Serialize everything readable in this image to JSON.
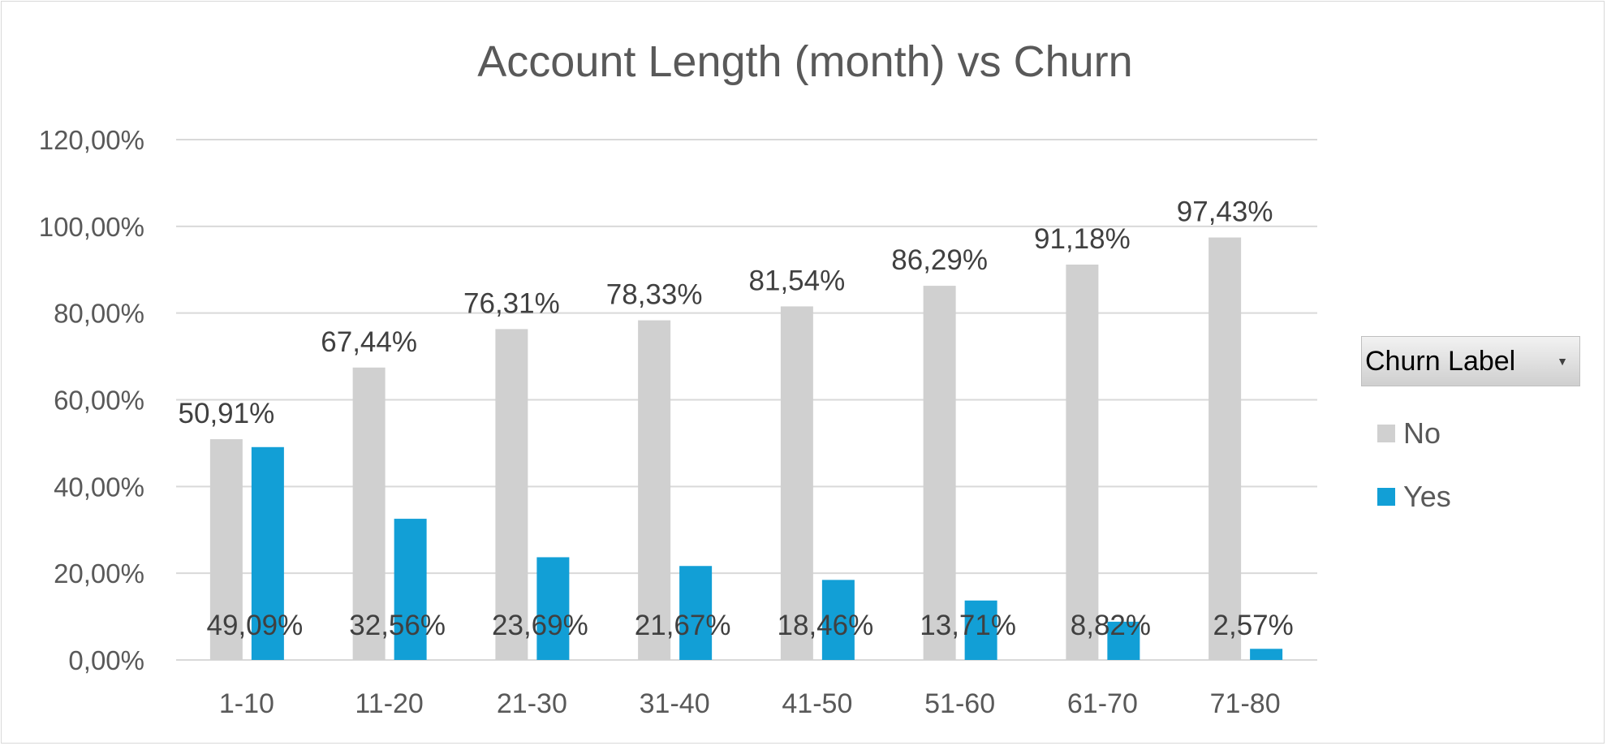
{
  "colors": {
    "no": "#d0d0d0",
    "yes": "#129fd6",
    "grid": "#d9d9d9",
    "text": "#595959",
    "label": "#404040"
  },
  "chart_data": {
    "type": "bar",
    "title": "Account Length (month) vs Churn",
    "xlabel": "",
    "ylabel": "",
    "ylim": [
      0,
      120
    ],
    "y_ticks": [
      "0,00%",
      "20,00%",
      "40,00%",
      "60,00%",
      "80,00%",
      "100,00%",
      "120,00%"
    ],
    "grid": true,
    "legend_placement": "right",
    "categories": [
      "1-10",
      "11-20",
      "21-30",
      "31-40",
      "41-50",
      "51-60",
      "61-70",
      "71-80"
    ],
    "series": [
      {
        "name": "No",
        "color": "#d0d0d0",
        "values": [
          50.91,
          67.44,
          76.31,
          78.33,
          81.54,
          86.29,
          91.18,
          97.43
        ],
        "labels": [
          "50,91%",
          "67,44%",
          "76,31%",
          "78,33%",
          "81,54%",
          "86,29%",
          "91,18%",
          "97,43%"
        ]
      },
      {
        "name": "Yes",
        "color": "#129fd6",
        "values": [
          49.09,
          32.56,
          23.69,
          21.67,
          18.46,
          13.71,
          8.82,
          2.57
        ],
        "labels": [
          "49,09%",
          "32,56%",
          "23,69%",
          "21,67%",
          "18,46%",
          "13,71%",
          "8,82%",
          "2,57%"
        ]
      }
    ]
  },
  "legend": {
    "title": "Churn Label",
    "items": [
      "No",
      "Yes"
    ],
    "dropdown_icon": "chevron-down-icon"
  }
}
